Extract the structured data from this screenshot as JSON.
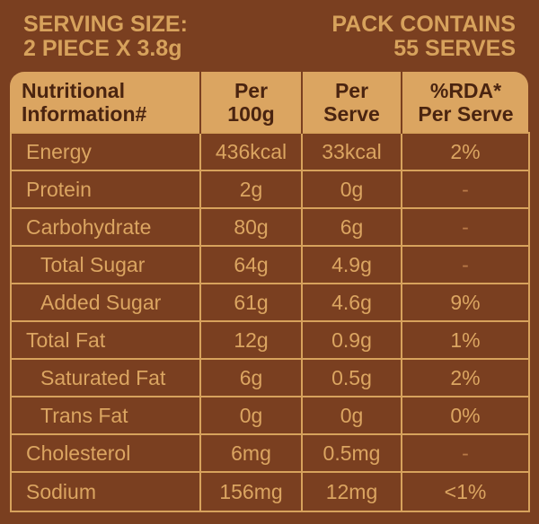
{
  "serving": {
    "left_line1": "SERVING SIZE:",
    "left_line2": "2 PIECE X 3.8g",
    "right_line1": "PACK CONTAINS",
    "right_line2": "55 SERVES"
  },
  "table": {
    "headers": {
      "col1_line1": "Nutritional",
      "col1_line2": "Information#",
      "col2_line1": "Per",
      "col2_line2": "100g",
      "col3_line1": "Per",
      "col3_line2": "Serve",
      "col4_line1": "%RDA*",
      "col4_line2": "Per Serve"
    },
    "rows": [
      {
        "nutrient": "Energy",
        "per100": "436kcal",
        "perServe": "33kcal",
        "rda": "2%"
      },
      {
        "nutrient": "Protein",
        "per100": "2g",
        "perServe": "0g",
        "rda": "-"
      },
      {
        "nutrient": "Carbohydrate",
        "per100": "80g",
        "perServe": "6g",
        "rda": "-"
      },
      {
        "nutrient": "Total Sugar",
        "per100": "64g",
        "perServe": "4.9g",
        "rda": "-"
      },
      {
        "nutrient": "Added Sugar",
        "per100": "61g",
        "perServe": "4.6g",
        "rda": "9%"
      },
      {
        "nutrient": "Total Fat",
        "per100": "12g",
        "perServe": "0.9g",
        "rda": "1%"
      },
      {
        "nutrient": "Saturated Fat",
        "per100": "6g",
        "perServe": "0.5g",
        "rda": "2%"
      },
      {
        "nutrient": "Trans Fat",
        "per100": "0g",
        "perServe": "0g",
        "rda": "0%"
      },
      {
        "nutrient": "Cholesterol",
        "per100": "6mg",
        "perServe": "0.5mg",
        "rda": "-"
      },
      {
        "nutrient": "Sodium",
        "per100": "156mg",
        "perServe": "12mg",
        "rda": "<1%"
      }
    ]
  },
  "colors": {
    "background": "#7a3f20",
    "accent": "#dba561",
    "header_text": "#4a2410"
  }
}
